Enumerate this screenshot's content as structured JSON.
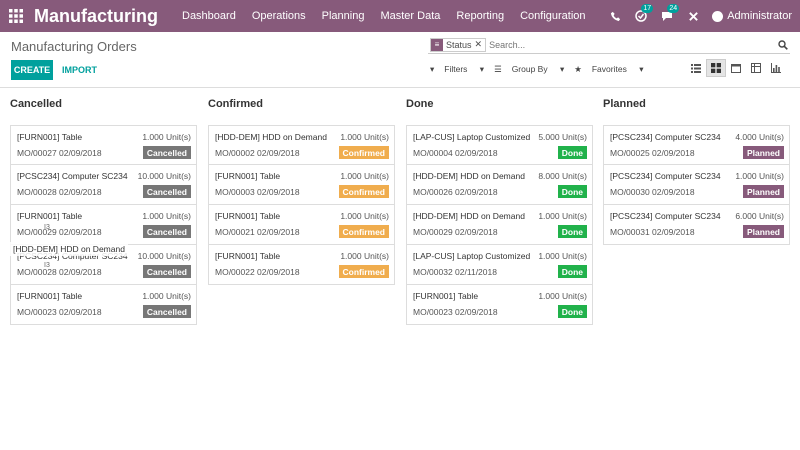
{
  "app": {
    "title": "Manufacturing"
  },
  "menu": [
    "Dashboard",
    "Operations",
    "Planning",
    "Master Data",
    "Reporting",
    "Configuration"
  ],
  "topbar": {
    "activity_count": "17",
    "messages_count": "24",
    "user": "Administrator"
  },
  "page": {
    "title": "Manufacturing Orders",
    "create_label": "CREATE",
    "import_label": "IMPORT"
  },
  "search": {
    "facet": "Status",
    "placeholder": "Search..."
  },
  "filters": {
    "filters": "Filters",
    "groupby": "Group By",
    "favorites": "Favorites"
  },
  "status_colors": {
    "Cancelled": "#777777",
    "Confirmed": "#f0ad4e",
    "Done": "#21b24b",
    "Planned": "#875a7b"
  },
  "columns": [
    {
      "title": "Cancelled",
      "cards": [
        {
          "name": "[FURN001] Table",
          "qty": "1.000 Unit(s)",
          "ref": "MO/00027 02/09/2018",
          "status": "Cancelled"
        },
        {
          "name": "[PCSC234] Computer SC234",
          "qty": "10.000 Unit(s)",
          "ref": "MO/00028 02/09/2018",
          "status": "Cancelled"
        },
        {
          "name": "[FURN001] Table",
          "qty": "1.000 Unit(s)",
          "ref": "MO/00029 02/09/2018",
          "status": "Cancelled"
        },
        {
          "name": "[PCSC234] Computer SC234",
          "qty": "10.000 Unit(s)",
          "ref": "MO/00028 02/09/2018",
          "status": "Cancelled"
        },
        {
          "name": "[FURN001] Table",
          "qty": "1.000 Unit(s)",
          "ref": "MO/00023 02/09/2018",
          "status": "Cancelled"
        }
      ]
    },
    {
      "title": "Confirmed",
      "cards": [
        {
          "name": "[HDD-DEM] HDD on Demand",
          "qty": "1.000 Unit(s)",
          "ref": "MO/00002 02/09/2018",
          "status": "Confirmed"
        },
        {
          "name": "[FURN001] Table",
          "qty": "1.000 Unit(s)",
          "ref": "MO/00003 02/09/2018",
          "status": "Confirmed"
        },
        {
          "name": "[FURN001] Table",
          "qty": "1.000 Unit(s)",
          "ref": "MO/00021 02/09/2018",
          "status": "Confirmed"
        },
        {
          "name": "[FURN001] Table",
          "qty": "1.000 Unit(s)",
          "ref": "MO/00022 02/09/2018",
          "status": "Confirmed"
        }
      ]
    },
    {
      "title": "Done",
      "cards": [
        {
          "name": "[LAP-CUS] Laptop Customized",
          "qty": "5.000 Unit(s)",
          "ref": "MO/00004 02/09/2018",
          "status": "Done"
        },
        {
          "name": "[HDD-DEM] HDD on Demand",
          "qty": "8.000 Unit(s)",
          "ref": "MO/00026 02/09/2018",
          "status": "Done"
        },
        {
          "name": "[HDD-DEM] HDD on Demand",
          "qty": "1.000 Unit(s)",
          "ref": "MO/00029 02/09/2018",
          "status": "Done"
        },
        {
          "name": "[LAP-CUS] Laptop Customized",
          "qty": "1.000 Unit(s)",
          "ref": "MO/00032 02/11/2018",
          "status": "Done"
        },
        {
          "name": "[FURN001] Table",
          "qty": "1.000 Unit(s)",
          "ref": "MO/00023 02/09/2018",
          "status": "Done"
        }
      ]
    },
    {
      "title": "Planned",
      "cards": [
        {
          "name": "[PCSC234] Computer SC234",
          "qty": "4.000 Unit(s)",
          "ref": "MO/00025 02/09/2018",
          "status": "Planned"
        },
        {
          "name": "[PCSC234] Computer SC234",
          "qty": "1.000 Unit(s)",
          "ref": "MO/00030 02/09/2018",
          "status": "Planned"
        },
        {
          "name": "[PCSC234] Computer SC234",
          "qty": "6.000 Unit(s)",
          "ref": "MO/00031 02/09/2018",
          "status": "Planned"
        }
      ]
    }
  ],
  "dragging": {
    "label": "[HDD-DEM] HDD on Demand"
  }
}
